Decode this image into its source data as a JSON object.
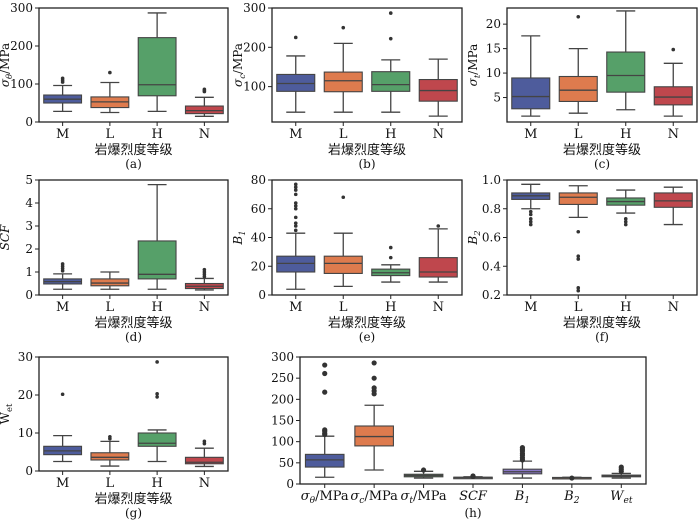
{
  "colors": {
    "M": "#4e5c9c",
    "L": "#de7b4e",
    "H": "#56a069",
    "N": "#bf474d",
    "h": [
      "#4e5c9c",
      "#de7b4e",
      "#5d8a5c",
      "#8a8a8a",
      "#8a78c8",
      "#8a6e5a",
      "#d18ab4"
    ],
    "line": "#444444",
    "flier": "#333333"
  },
  "chart_data": [
    {
      "id": "a",
      "type": "box",
      "caption": "(a)",
      "xlabel": "岩爆烈度等级",
      "ylabel": {
        "main": "σ",
        "sub": "θ",
        "rest": "/MPa",
        "italic": true
      },
      "categories": [
        "M",
        "L",
        "H",
        "N"
      ],
      "ylim": [
        0,
        300
      ],
      "yticks": [
        0,
        100,
        200,
        300
      ],
      "boxes": [
        {
          "whislo": 28,
          "q1": 50,
          "med": 60,
          "q3": 71,
          "whishi": 96,
          "fliers": [
            105,
            110,
            115
          ]
        },
        {
          "whislo": 25,
          "q1": 38,
          "med": 53,
          "q3": 66,
          "whishi": 104,
          "fliers": [
            130
          ]
        },
        {
          "whislo": 28,
          "q1": 69,
          "med": 98,
          "q3": 222,
          "whishi": 287,
          "fliers": []
        },
        {
          "whislo": 15,
          "q1": 22,
          "med": 30,
          "q3": 42,
          "whishi": 65,
          "fliers": [
            80,
            83,
            86
          ]
        }
      ]
    },
    {
      "id": "b",
      "type": "box",
      "caption": "(b)",
      "xlabel": "岩爆烈度等级",
      "ylabel": {
        "main": "σ",
        "sub": "c",
        "rest": "/MPa",
        "italic": true
      },
      "categories": [
        "M",
        "L",
        "H",
        "N"
      ],
      "ylim": [
        10,
        300
      ],
      "yticks": [
        100,
        200,
        300
      ],
      "boxes": [
        {
          "whislo": 35,
          "q1": 88,
          "med": 108,
          "q3": 131,
          "whishi": 178,
          "fliers": [
            225
          ]
        },
        {
          "whislo": 35,
          "q1": 87,
          "med": 115,
          "q3": 137,
          "whishi": 210,
          "fliers": [
            250
          ]
        },
        {
          "whislo": 35,
          "q1": 88,
          "med": 105,
          "q3": 138,
          "whishi": 168,
          "fliers": [
            222,
            287
          ]
        },
        {
          "whislo": 25,
          "q1": 63,
          "med": 90,
          "q3": 118,
          "whishi": 170,
          "fliers": []
        }
      ]
    },
    {
      "id": "c",
      "type": "box",
      "caption": "(c)",
      "xlabel": "岩爆烈度等级",
      "ylabel": {
        "main": "σ",
        "sub": "t",
        "rest": "/MPa",
        "italic": true
      },
      "categories": [
        "M",
        "L",
        "H",
        "N"
      ],
      "ylim": [
        0,
        23.3
      ],
      "yticks": [
        5,
        10,
        15,
        20
      ],
      "boxes": [
        {
          "whislo": 1.2,
          "q1": 2.7,
          "med": 5.2,
          "q3": 9,
          "whishi": 17.6,
          "fliers": []
        },
        {
          "whislo": 1.8,
          "q1": 4.2,
          "med": 6.5,
          "q3": 9.3,
          "whishi": 15,
          "fliers": [
            21.5
          ]
        },
        {
          "whislo": 2.5,
          "q1": 6.1,
          "med": 9.5,
          "q3": 14.3,
          "whishi": 22.7,
          "fliers": []
        },
        {
          "whislo": 1.2,
          "q1": 3.5,
          "med": 5.1,
          "q3": 7.2,
          "whishi": 12,
          "fliers": [
            14.8
          ]
        }
      ]
    },
    {
      "id": "d",
      "type": "box",
      "caption": "(d)",
      "xlabel": "岩爆烈度等级",
      "ylabel": {
        "main": "SCF",
        "sub": "",
        "rest": "",
        "italic": true
      },
      "categories": [
        "M",
        "L",
        "H",
        "N"
      ],
      "ylim": [
        0,
        5
      ],
      "yticks": [
        0,
        1,
        2,
        3,
        4,
        5
      ],
      "boxes": [
        {
          "whislo": 0.25,
          "q1": 0.48,
          "med": 0.58,
          "q3": 0.7,
          "whishi": 0.92,
          "fliers": [
            1.05,
            1.15,
            1.25,
            1.35
          ]
        },
        {
          "whislo": 0.25,
          "q1": 0.4,
          "med": 0.52,
          "q3": 0.7,
          "whishi": 1.0,
          "fliers": []
        },
        {
          "whislo": 0.25,
          "q1": 0.7,
          "med": 0.9,
          "q3": 2.35,
          "whishi": 4.8,
          "fliers": []
        },
        {
          "whislo": 0.22,
          "q1": 0.28,
          "med": 0.38,
          "q3": 0.5,
          "whishi": 0.72,
          "fliers": [
            0.8,
            0.9,
            1.0,
            1.1
          ]
        }
      ]
    },
    {
      "id": "e",
      "type": "box",
      "caption": "(e)",
      "xlabel": "岩爆烈度等级",
      "ylabel": {
        "main": "B",
        "sub": "1",
        "rest": "",
        "italic": true
      },
      "categories": [
        "M",
        "L",
        "H",
        "N"
      ],
      "ylim": [
        0,
        80
      ],
      "yticks": [
        0,
        20,
        40,
        60,
        80
      ],
      "boxes": [
        {
          "whislo": 4,
          "q1": 16,
          "med": 22,
          "q3": 27,
          "whishi": 43,
          "fliers": [
            45,
            48,
            50,
            54,
            60,
            62,
            64,
            70,
            73,
            75,
            77
          ]
        },
        {
          "whislo": 6,
          "q1": 15,
          "med": 22,
          "q3": 27,
          "whishi": 43,
          "fliers": [
            68
          ]
        },
        {
          "whislo": 9,
          "q1": 13.5,
          "med": 15.5,
          "q3": 18,
          "whishi": 21,
          "fliers": [
            26,
            33
          ]
        },
        {
          "whislo": 9,
          "q1": 12.5,
          "med": 16,
          "q3": 26,
          "whishi": 46,
          "fliers": [
            48
          ]
        }
      ]
    },
    {
      "id": "f",
      "type": "box",
      "caption": "(f)",
      "xlabel": "岩爆烈度等级",
      "ylabel": {
        "main": "B",
        "sub": "2",
        "rest": "",
        "italic": true
      },
      "categories": [
        "M",
        "L",
        "H",
        "N"
      ],
      "ylim": [
        0.2,
        1.0
      ],
      "yticks": [
        0.2,
        0.4,
        0.6,
        0.8,
        1.0
      ],
      "ytick_labels": [
        "0.2",
        "0.4",
        "0.6",
        "0.8",
        "1.0"
      ],
      "boxes": [
        {
          "whislo": 0.8,
          "q1": 0.865,
          "med": 0.89,
          "q3": 0.91,
          "whishi": 0.97,
          "fliers": [
            0.69,
            0.71,
            0.73,
            0.76,
            0.78
          ]
        },
        {
          "whislo": 0.74,
          "q1": 0.83,
          "med": 0.88,
          "q3": 0.91,
          "whishi": 0.96,
          "fliers": [
            0.64,
            0.45,
            0.47,
            0.23,
            0.25
          ]
        },
        {
          "whislo": 0.77,
          "q1": 0.825,
          "med": 0.85,
          "q3": 0.875,
          "whishi": 0.93,
          "fliers": [
            0.69,
            0.71,
            0.73
          ]
        },
        {
          "whislo": 0.69,
          "q1": 0.81,
          "med": 0.855,
          "q3": 0.91,
          "whishi": 0.95,
          "fliers": []
        }
      ]
    },
    {
      "id": "g",
      "type": "box",
      "caption": "(g)",
      "xlabel": "岩爆烈度等级",
      "ylabel": {
        "main": "W",
        "sub": "et",
        "rest": "",
        "italic": false
      },
      "categories": [
        "M",
        "L",
        "H",
        "N"
      ],
      "ylim": [
        0,
        30
      ],
      "yticks": [
        0,
        10,
        20,
        30
      ],
      "boxes": [
        {
          "whislo": 2.5,
          "q1": 4.3,
          "med": 5.3,
          "q3": 6.5,
          "whishi": 9.3,
          "fliers": [
            20.2
          ]
        },
        {
          "whislo": 1.3,
          "q1": 2.9,
          "med": 3.6,
          "q3": 4.8,
          "whishi": 7.8,
          "fliers": [
            8.5,
            9
          ]
        },
        {
          "whislo": 2.5,
          "q1": 6.5,
          "med": 7.3,
          "q3": 10,
          "whishi": 10.8,
          "fliers": [
            19.5,
            20.3,
            28.7
          ]
        },
        {
          "whislo": 1.2,
          "q1": 1.9,
          "med": 2.3,
          "q3": 3.6,
          "whishi": 6,
          "fliers": [
            7.2,
            7.8
          ]
        }
      ]
    },
    {
      "id": "h",
      "type": "box",
      "caption": "(h)",
      "xlabel": "",
      "ylabel": null,
      "categories": [
        {
          "main": "σ",
          "sub": "θ",
          "rest": "/MPa",
          "italic": true
        },
        {
          "main": "σ",
          "sub": "c",
          "rest": "/MPa",
          "italic": true
        },
        {
          "main": "σ",
          "sub": "t",
          "rest": "/MPa",
          "italic": true
        },
        {
          "main": "SCF",
          "sub": "",
          "rest": "",
          "italic": true
        },
        {
          "main": "B",
          "sub": "1",
          "rest": "",
          "italic": true
        },
        {
          "main": "B",
          "sub": "2",
          "rest": "",
          "italic": true
        },
        {
          "main": "W",
          "sub": "et",
          "rest": "",
          "italic": true
        }
      ],
      "ylim": [
        0,
        300
      ],
      "yticks": [
        0,
        50,
        100,
        150,
        200,
        250,
        300
      ],
      "boxes": [
        {
          "whislo": 16,
          "q1": 40,
          "med": 57,
          "q3": 70,
          "whishi": 113,
          "fliers": [
            117,
            120,
            125,
            128,
            217,
            261,
            281
          ]
        },
        {
          "whislo": 33,
          "q1": 90,
          "med": 112,
          "q3": 137,
          "whishi": 186,
          "fliers": [
            213,
            220,
            227,
            250,
            286
          ]
        },
        {
          "whislo": 14,
          "q1": 17,
          "med": 20,
          "q3": 23,
          "whishi": 30,
          "fliers": [
            33
          ]
        },
        {
          "whislo": 14,
          "q1": 15,
          "med": 15.5,
          "q3": 16,
          "whishi": 17,
          "fliers": [
            18,
            19
          ]
        },
        {
          "whislo": 14,
          "q1": 24,
          "med": 29,
          "q3": 35,
          "whishi": 54,
          "fliers": [
            57,
            62,
            68,
            72,
            78,
            82,
            86
          ]
        },
        {
          "whislo": 14,
          "q1": 14.5,
          "med": 15,
          "q3": 15.5,
          "whishi": 16,
          "fliers": [
            14
          ]
        },
        {
          "whislo": 14,
          "q1": 17,
          "med": 19,
          "q3": 21,
          "whishi": 25,
          "fliers": [
            30,
            35,
            40
          ]
        }
      ]
    }
  ]
}
